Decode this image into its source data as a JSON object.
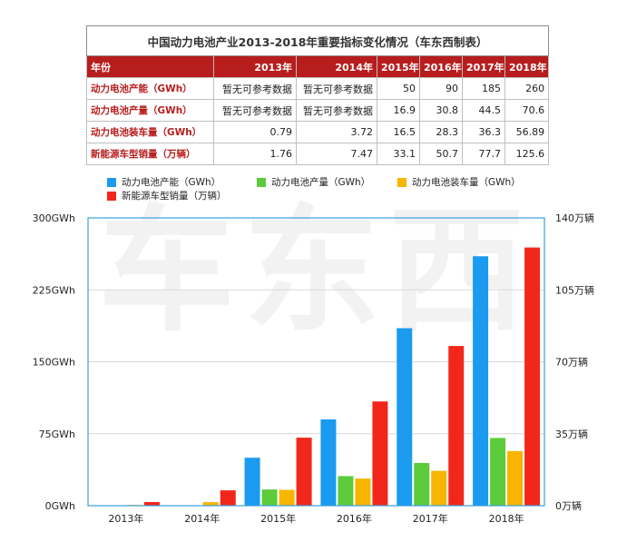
{
  "table": {
    "title": "中国动力电池产业2013-2018年重要指标变化情况（车东西制表）",
    "header": [
      "年份",
      "2013年",
      "2014年",
      "2015年",
      "2016年",
      "2017年",
      "2018年"
    ],
    "rows": [
      {
        "label": "动力电池产能（GWh）",
        "values": [
          "暂无可参考数据",
          "暂无可参考数据",
          "50",
          "90",
          "185",
          "260"
        ]
      },
      {
        "label": "动力电池产量（GWh）",
        "values": [
          "暂无可参考数据",
          "暂无可参考数据",
          "16.9",
          "30.8",
          "44.5",
          "70.6"
        ]
      },
      {
        "label": "动力电池装车量（GWh）",
        "values": [
          "0.79",
          "3.72",
          "16.5",
          "28.3",
          "36.3",
          "56.89"
        ]
      },
      {
        "label": "新能源车型销量（万辆）",
        "values": [
          "1.76",
          "7.47",
          "33.1",
          "50.7",
          "77.7",
          "125.6"
        ]
      }
    ]
  },
  "chart_data": {
    "type": "bar",
    "categories": [
      "2013年",
      "2014年",
      "2015年",
      "2016年",
      "2017年",
      "2018年"
    ],
    "series": [
      {
        "name": "动力电池产能（GWh）",
        "axis": "left",
        "color": "#1a9bf0",
        "values": [
          null,
          null,
          50,
          90,
          185,
          260
        ]
      },
      {
        "name": "动力电池产量（GWh）",
        "axis": "left",
        "color": "#5ccb3c",
        "values": [
          null,
          null,
          16.9,
          30.8,
          44.5,
          70.6
        ]
      },
      {
        "name": "动力电池装车量（GWh）",
        "axis": "left",
        "color": "#f7b500",
        "values": [
          0.79,
          3.72,
          16.5,
          28.3,
          36.3,
          56.89
        ]
      },
      {
        "name": "新能源车型销量（万辆）",
        "axis": "right",
        "color": "#f2271c",
        "values": [
          1.76,
          7.47,
          33.1,
          50.7,
          77.7,
          125.6
        ]
      }
    ],
    "left_axis": {
      "ylim": [
        0,
        300
      ],
      "ticks": [
        "0GWh",
        "75GWh",
        "150GWh",
        "225GWh",
        "300GWh"
      ],
      "tick_values": [
        0,
        75,
        150,
        225,
        300
      ]
    },
    "right_axis": {
      "ylim": [
        0,
        140
      ],
      "ticks": [
        "0万辆",
        "35万辆",
        "70万辆",
        "105万辆",
        "140万辆"
      ],
      "tick_values": [
        0,
        35,
        70,
        105,
        140
      ]
    },
    "grid": true,
    "legend_position": "top"
  },
  "watermark": "车东西",
  "colors": {
    "header_bg": "#b81d1d",
    "row_label": "#b81d1d",
    "grid": "#d9d9d9",
    "plot_border": "#3a9fd8"
  }
}
